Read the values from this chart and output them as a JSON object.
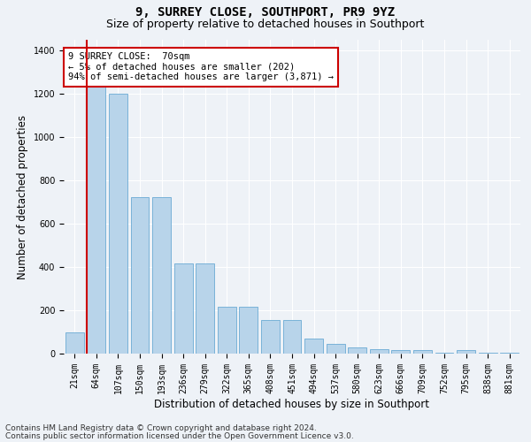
{
  "title1": "9, SURREY CLOSE, SOUTHPORT, PR9 9YZ",
  "title2": "Size of property relative to detached houses in Southport",
  "xlabel": "Distribution of detached houses by size in Southport",
  "ylabel": "Number of detached properties",
  "categories": [
    "21sqm",
    "64sqm",
    "107sqm",
    "150sqm",
    "193sqm",
    "236sqm",
    "279sqm",
    "322sqm",
    "365sqm",
    "408sqm",
    "451sqm",
    "494sqm",
    "537sqm",
    "580sqm",
    "623sqm",
    "666sqm",
    "709sqm",
    "752sqm",
    "795sqm",
    "838sqm",
    "881sqm"
  ],
  "values": [
    100,
    1240,
    1200,
    725,
    725,
    415,
    415,
    215,
    215,
    155,
    155,
    70,
    45,
    30,
    20,
    15,
    15,
    5,
    15,
    5,
    5
  ],
  "bar_color": "#b8d4ea",
  "bar_edge_color": "#6aaad4",
  "highlight_bar_index": 1,
  "highlight_color": "#cc0000",
  "annotation_text": "9 SURREY CLOSE:  70sqm\n← 5% of detached houses are smaller (202)\n94% of semi-detached houses are larger (3,871) →",
  "annotation_box_color": "#ffffff",
  "annotation_box_edge_color": "#cc0000",
  "ylim": [
    0,
    1450
  ],
  "yticks": [
    0,
    200,
    400,
    600,
    800,
    1000,
    1200,
    1400
  ],
  "footer1": "Contains HM Land Registry data © Crown copyright and database right 2024.",
  "footer2": "Contains public sector information licensed under the Open Government Licence v3.0.",
  "bg_color": "#eef2f7",
  "plot_bg_color": "#eef2f7",
  "grid_color": "#ffffff",
  "title_fontsize": 10,
  "subtitle_fontsize": 9,
  "axis_label_fontsize": 8.5,
  "tick_fontsize": 7,
  "footer_fontsize": 6.5,
  "annotation_fontsize": 7.5
}
